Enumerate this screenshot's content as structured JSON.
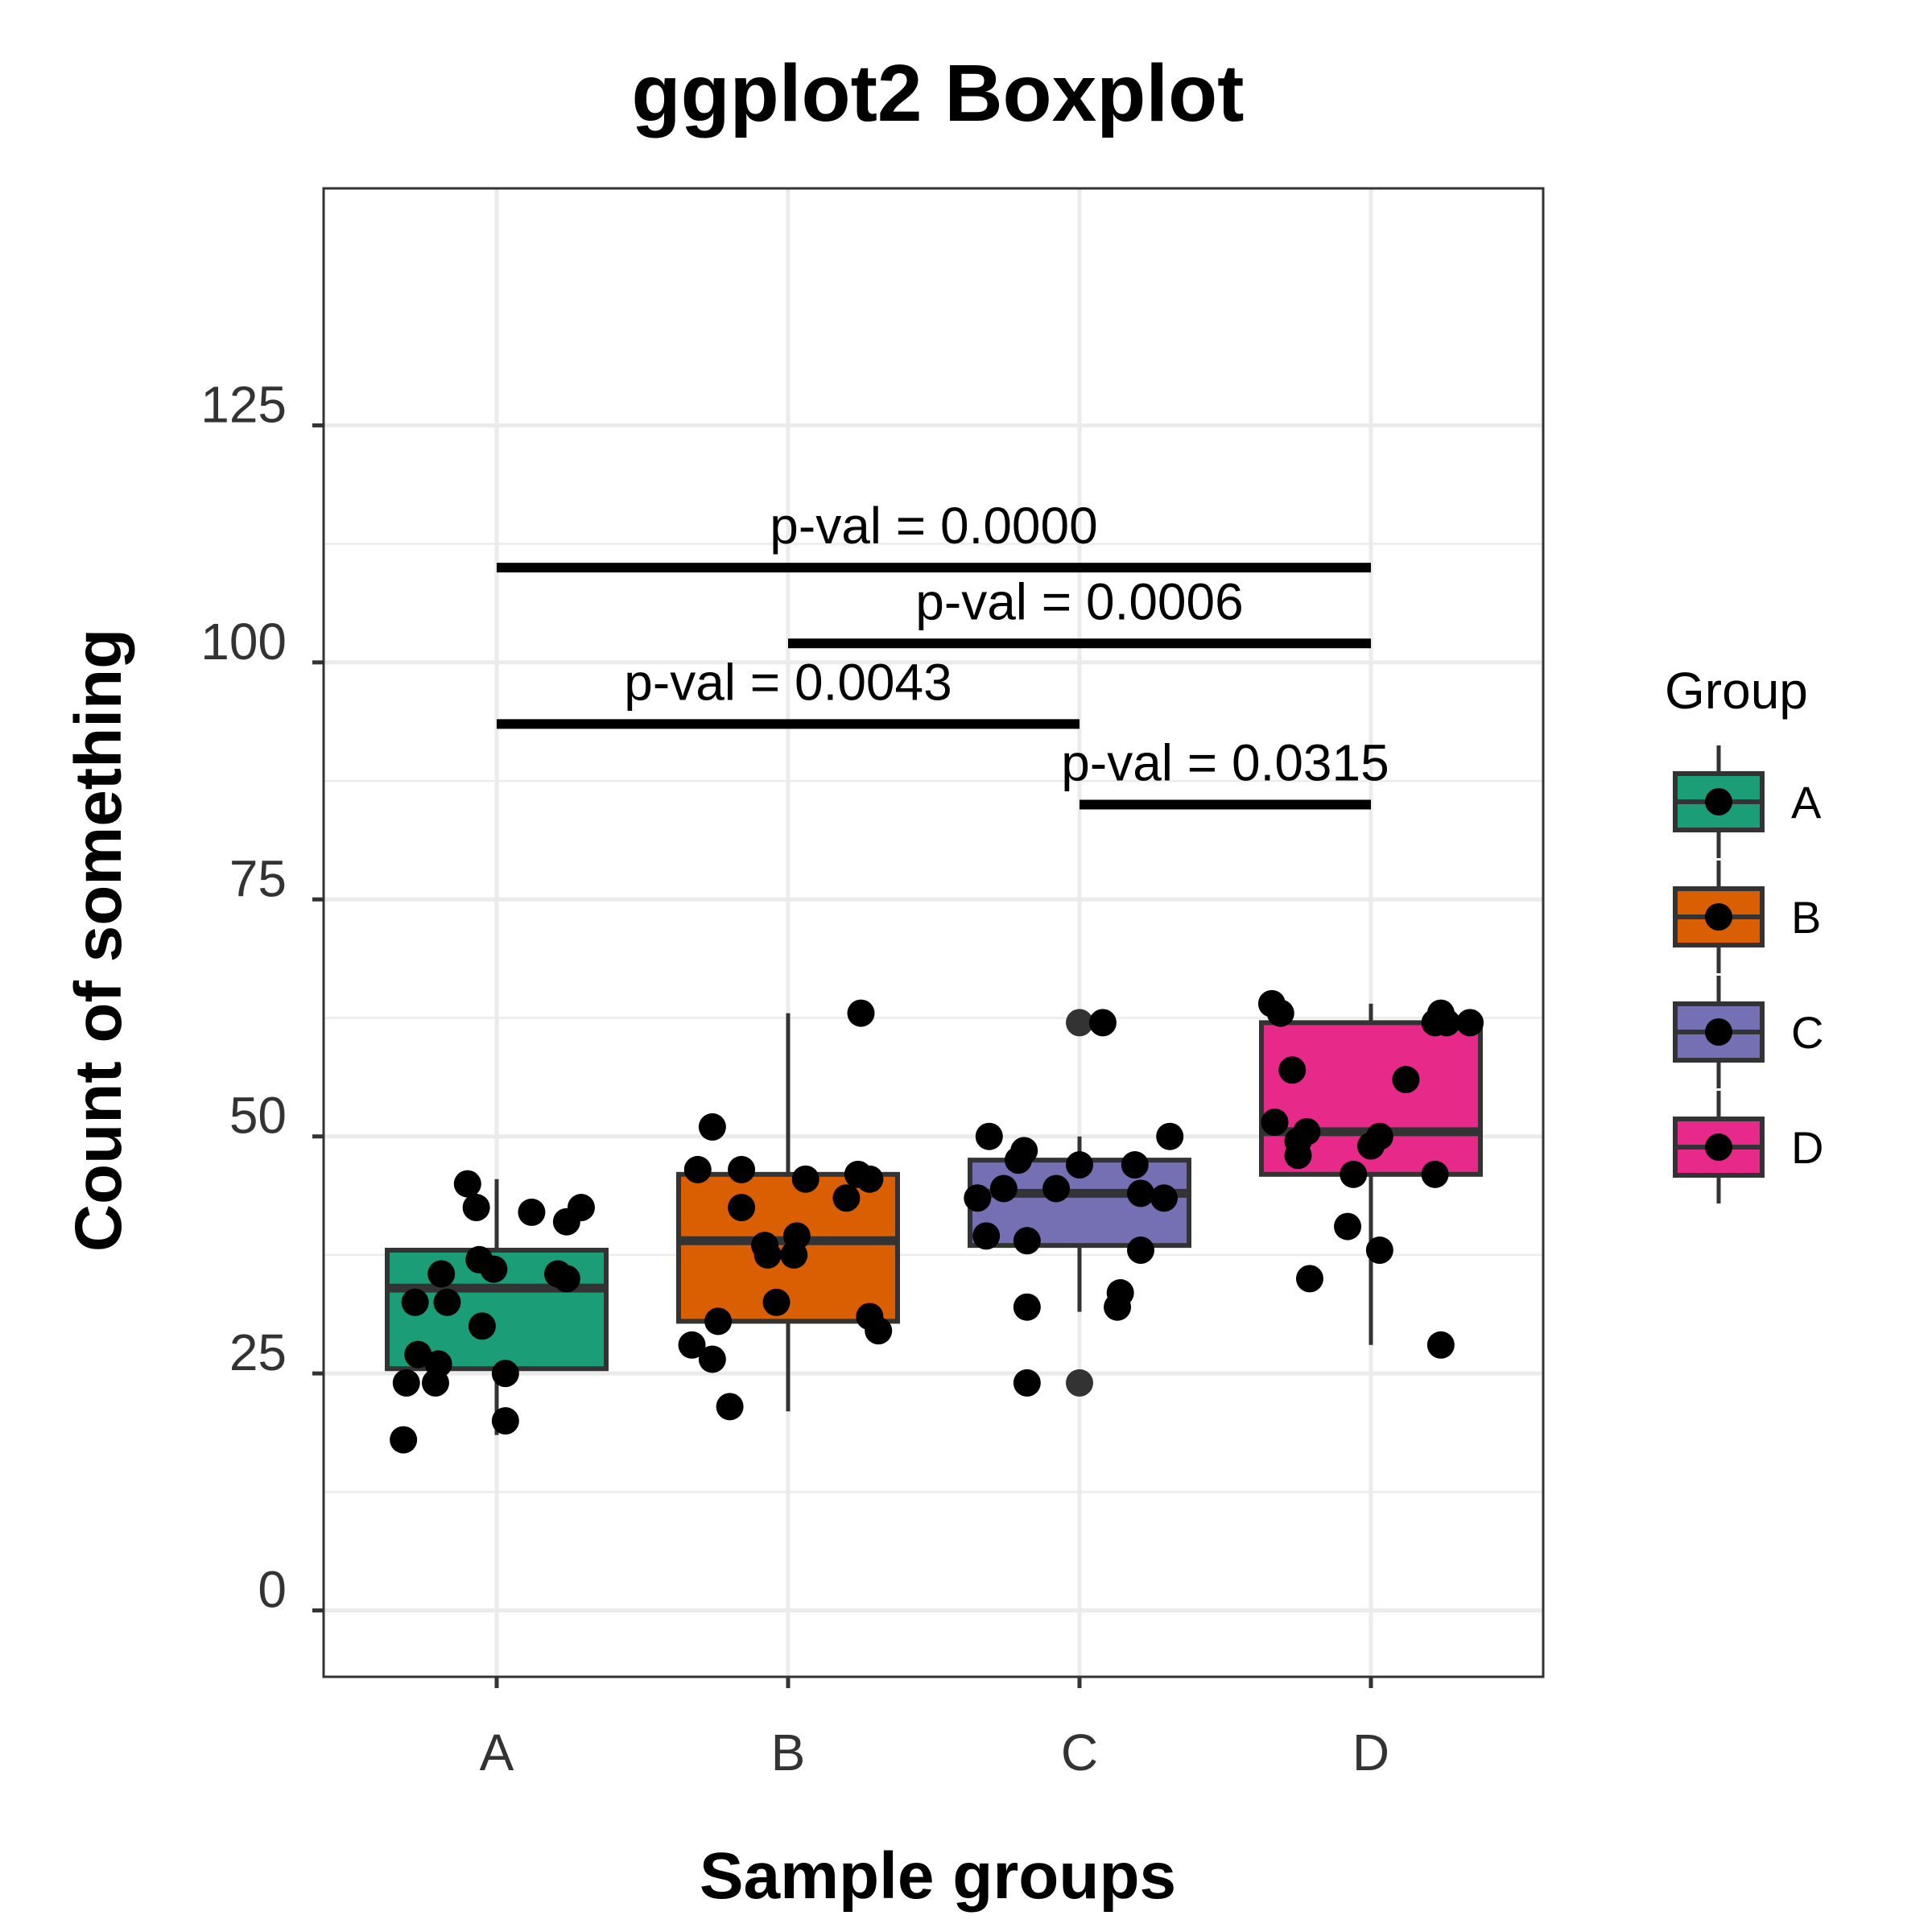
{
  "chart_data": {
    "type": "boxplot",
    "title": "ggplot2 Boxplot",
    "xlabel": "Sample groups",
    "ylabel": "Count of something",
    "ylim": [
      -7,
      150
    ],
    "yticks": [
      0,
      25,
      50,
      75,
      100,
      125
    ],
    "grid": true,
    "categories": [
      "A",
      "B",
      "C",
      "D"
    ],
    "colors": {
      "A": "#1b9e77",
      "B": "#d95f02",
      "C": "#7570b3",
      "D": "#e7298a",
      "box_outline": "#333333",
      "grid": "#ebebeb",
      "points": "#000000"
    },
    "boxes": [
      {
        "group": "A",
        "q1": 25.5,
        "median": 34,
        "q3": 38,
        "whisker_low": 18.5,
        "whisker_high": 45.5
      },
      {
        "group": "B",
        "q1": 30.5,
        "median": 39,
        "q3": 46,
        "whisker_low": 21,
        "whisker_high": 63
      },
      {
        "group": "C",
        "q1": 38.5,
        "median": 44,
        "q3": 47.5,
        "whisker_low": 31.5,
        "whisker_high": 50
      },
      {
        "group": "D",
        "q1": 46,
        "median": 50.5,
        "q3": 62,
        "whisker_low": 28,
        "whisker_high": 64
      }
    ],
    "outliers": [
      {
        "group": "C",
        "y": 62
      },
      {
        "group": "C",
        "y": 24
      }
    ],
    "points": [
      {
        "group": "A",
        "x": -0.32,
        "y": 18
      },
      {
        "group": "A",
        "x": -0.31,
        "y": 24
      },
      {
        "group": "A",
        "x": -0.27,
        "y": 27
      },
      {
        "group": "A",
        "x": -0.28,
        "y": 32.5
      },
      {
        "group": "A",
        "x": -0.21,
        "y": 24
      },
      {
        "group": "A",
        "x": -0.2,
        "y": 26
      },
      {
        "group": "A",
        "x": -0.19,
        "y": 35.5
      },
      {
        "group": "A",
        "x": -0.17,
        "y": 32.5
      },
      {
        "group": "A",
        "x": -0.1,
        "y": 45
      },
      {
        "group": "A",
        "x": -0.07,
        "y": 42.5
      },
      {
        "group": "A",
        "x": -0.06,
        "y": 37
      },
      {
        "group": "A",
        "x": -0.01,
        "y": 36
      },
      {
        "group": "A",
        "x": -0.05,
        "y": 30
      },
      {
        "group": "A",
        "x": 0.03,
        "y": 25
      },
      {
        "group": "A",
        "x": 0.03,
        "y": 20
      },
      {
        "group": "A",
        "x": 0.12,
        "y": 42
      },
      {
        "group": "A",
        "x": 0.21,
        "y": 35.5
      },
      {
        "group": "A",
        "x": 0.24,
        "y": 35
      },
      {
        "group": "A",
        "x": 0.24,
        "y": 41
      },
      {
        "group": "A",
        "x": 0.29,
        "y": 42.5
      },
      {
        "group": "B",
        "x": -0.33,
        "y": 28
      },
      {
        "group": "B",
        "x": -0.31,
        "y": 46.5
      },
      {
        "group": "B",
        "x": -0.26,
        "y": 51
      },
      {
        "group": "B",
        "x": -0.26,
        "y": 26.5
      },
      {
        "group": "B",
        "x": -0.24,
        "y": 30.5
      },
      {
        "group": "B",
        "x": -0.2,
        "y": 21.5
      },
      {
        "group": "B",
        "x": -0.16,
        "y": 46.5
      },
      {
        "group": "B",
        "x": -0.16,
        "y": 42.5
      },
      {
        "group": "B",
        "x": -0.08,
        "y": 38.5
      },
      {
        "group": "B",
        "x": -0.07,
        "y": 37.5
      },
      {
        "group": "B",
        "x": -0.04,
        "y": 32.5
      },
      {
        "group": "B",
        "x": 0.02,
        "y": 37.5
      },
      {
        "group": "B",
        "x": 0.03,
        "y": 39.5
      },
      {
        "group": "B",
        "x": 0.06,
        "y": 45.5
      },
      {
        "group": "B",
        "x": 0.2,
        "y": 43.5
      },
      {
        "group": "B",
        "x": 0.24,
        "y": 46
      },
      {
        "group": "B",
        "x": 0.25,
        "y": 63
      },
      {
        "group": "B",
        "x": 0.28,
        "y": 45.5
      },
      {
        "group": "B",
        "x": 0.28,
        "y": 31
      },
      {
        "group": "B",
        "x": 0.31,
        "y": 29.5
      },
      {
        "group": "C",
        "x": -0.35,
        "y": 43.5
      },
      {
        "group": "C",
        "x": -0.32,
        "y": 39.5
      },
      {
        "group": "C",
        "x": -0.31,
        "y": 50
      },
      {
        "group": "C",
        "x": -0.26,
        "y": 44.5
      },
      {
        "group": "C",
        "x": -0.21,
        "y": 47.5
      },
      {
        "group": "C",
        "x": -0.19,
        "y": 48.5
      },
      {
        "group": "C",
        "x": -0.18,
        "y": 39
      },
      {
        "group": "C",
        "x": -0.18,
        "y": 32
      },
      {
        "group": "C",
        "x": -0.18,
        "y": 24
      },
      {
        "group": "C",
        "x": -0.08,
        "y": 44.5
      },
      {
        "group": "C",
        "x": 0.0,
        "y": 47
      },
      {
        "group": "C",
        "x": 0.08,
        "y": 62
      },
      {
        "group": "C",
        "x": 0.13,
        "y": 32
      },
      {
        "group": "C",
        "x": 0.14,
        "y": 33.5
      },
      {
        "group": "C",
        "x": 0.19,
        "y": 47
      },
      {
        "group": "C",
        "x": 0.21,
        "y": 44
      },
      {
        "group": "C",
        "x": 0.21,
        "y": 38
      },
      {
        "group": "C",
        "x": 0.29,
        "y": 43.5
      },
      {
        "group": "C",
        "x": 0.31,
        "y": 50
      },
      {
        "group": "D",
        "x": -0.34,
        "y": 64
      },
      {
        "group": "D",
        "x": -0.31,
        "y": 63
      },
      {
        "group": "D",
        "x": -0.33,
        "y": 51.5
      },
      {
        "group": "D",
        "x": -0.27,
        "y": 57
      },
      {
        "group": "D",
        "x": -0.25,
        "y": 49.5
      },
      {
        "group": "D",
        "x": -0.25,
        "y": 48
      },
      {
        "group": "D",
        "x": -0.22,
        "y": 50.5
      },
      {
        "group": "D",
        "x": -0.21,
        "y": 35
      },
      {
        "group": "D",
        "x": -0.06,
        "y": 46
      },
      {
        "group": "D",
        "x": -0.08,
        "y": 40.5
      },
      {
        "group": "D",
        "x": 0.0,
        "y": 49
      },
      {
        "group": "D",
        "x": 0.03,
        "y": 50
      },
      {
        "group": "D",
        "x": 0.03,
        "y": 38
      },
      {
        "group": "D",
        "x": 0.12,
        "y": 56
      },
      {
        "group": "D",
        "x": 0.22,
        "y": 46
      },
      {
        "group": "D",
        "x": 0.22,
        "y": 62
      },
      {
        "group": "D",
        "x": 0.24,
        "y": 63
      },
      {
        "group": "D",
        "x": 0.26,
        "y": 62
      },
      {
        "group": "D",
        "x": 0.24,
        "y": 28
      },
      {
        "group": "D",
        "x": 0.34,
        "y": 62
      }
    ],
    "comparisons": [
      {
        "from": "A",
        "to": "D",
        "y": 110,
        "label": "p-val = 0.0000"
      },
      {
        "from": "B",
        "to": "D",
        "y": 102,
        "label": "p-val = 0.0006"
      },
      {
        "from": "A",
        "to": "C",
        "y": 93.5,
        "label": "p-val = 0.0043"
      },
      {
        "from": "C",
        "to": "D",
        "y": 85,
        "label": "p-val = 0.0315"
      }
    ],
    "legend": {
      "title": "Group",
      "position": "right",
      "items": [
        "A",
        "B",
        "C",
        "D"
      ]
    }
  }
}
